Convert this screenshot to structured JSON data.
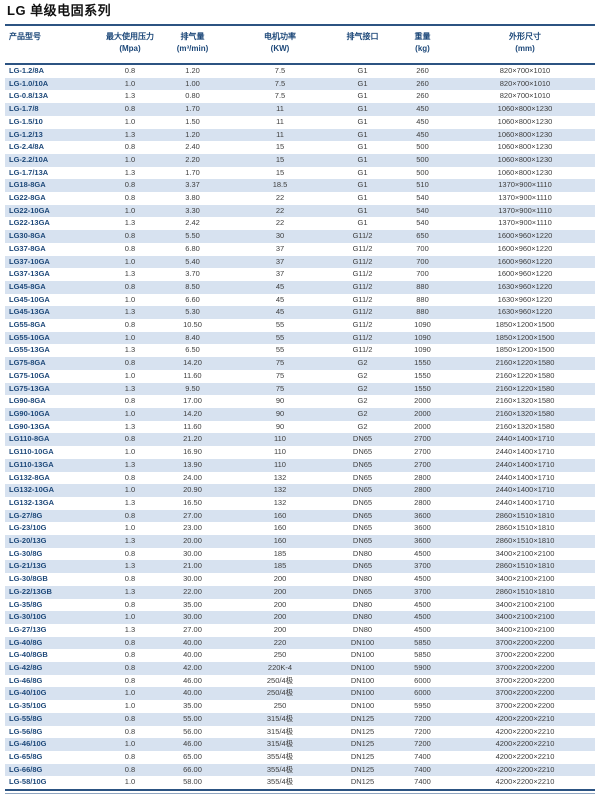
{
  "page_title": "LG 单级电固系列",
  "colors": {
    "accent_border": "#2c5382",
    "header_text": "#1d4879",
    "model_text": "#1d4879",
    "body_text": "#3d3d3d",
    "stripe": "#d7e2f0",
    "row_white": "#ffffff"
  },
  "table": {
    "columns": [
      {
        "key": "model",
        "label": "产品型号",
        "unit": ""
      },
      {
        "key": "max_pressure",
        "label": "最大使用压力",
        "unit": "(Mpa)"
      },
      {
        "key": "displacement",
        "label": "排气量",
        "unit": "(m³/min)"
      },
      {
        "key": "motor_power",
        "label": "电机功率",
        "unit": "(KW)"
      },
      {
        "key": "outlet",
        "label": "排气接口",
        "unit": ""
      },
      {
        "key": "weight",
        "label": "重量",
        "unit": "(kg)"
      },
      {
        "key": "dimensions",
        "label": "外形尺寸",
        "unit": "(mm)"
      }
    ],
    "rows": [
      [
        "LG-1.2/8A",
        "0.8",
        "1.20",
        "7.5",
        "G1",
        "260",
        "820×700×1010"
      ],
      [
        "LG-1.0/10A",
        "1.0",
        "1.00",
        "7.5",
        "G1",
        "260",
        "820×700×1010"
      ],
      [
        "LG-0.8/13A",
        "1.3",
        "0.80",
        "7.5",
        "G1",
        "260",
        "820×700×1010"
      ],
      [
        "LG-1.7/8",
        "0.8",
        "1.70",
        "11",
        "G1",
        "450",
        "1060×800×1230"
      ],
      [
        "LG-1.5/10",
        "1.0",
        "1.50",
        "11",
        "G1",
        "450",
        "1060×800×1230"
      ],
      [
        "LG-1.2/13",
        "1.3",
        "1.20",
        "11",
        "G1",
        "450",
        "1060×800×1230"
      ],
      [
        "LG-2.4/8A",
        "0.8",
        "2.40",
        "15",
        "G1",
        "500",
        "1060×800×1230"
      ],
      [
        "LG-2.2/10A",
        "1.0",
        "2.20",
        "15",
        "G1",
        "500",
        "1060×800×1230"
      ],
      [
        "LG-1.7/13A",
        "1.3",
        "1.70",
        "15",
        "G1",
        "500",
        "1060×800×1230"
      ],
      [
        "LG18-8GA",
        "0.8",
        "3.37",
        "18.5",
        "G1",
        "510",
        "1370×900×1110"
      ],
      [
        "LG22-8GA",
        "0.8",
        "3.80",
        "22",
        "G1",
        "540",
        "1370×900×1110"
      ],
      [
        "LG22-10GA",
        "1.0",
        "3.30",
        "22",
        "G1",
        "540",
        "1370×900×1110"
      ],
      [
        "LG22-13GA",
        "1.3",
        "2.42",
        "22",
        "G1",
        "540",
        "1370×900×1110"
      ],
      [
        "LG30-8GA",
        "0.8",
        "5.50",
        "30",
        "G11/2",
        "650",
        "1600×960×1220"
      ],
      [
        "LG37-8GA",
        "0.8",
        "6.80",
        "37",
        "G11/2",
        "700",
        "1600×960×1220"
      ],
      [
        "LG37-10GA",
        "1.0",
        "5.40",
        "37",
        "G11/2",
        "700",
        "1600×960×1220"
      ],
      [
        "LG37-13GA",
        "1.3",
        "3.70",
        "37",
        "G11/2",
        "700",
        "1600×960×1220"
      ],
      [
        "LG45-8GA",
        "0.8",
        "8.50",
        "45",
        "G11/2",
        "880",
        "1630×960×1220"
      ],
      [
        "LG45-10GA",
        "1.0",
        "6.60",
        "45",
        "G11/2",
        "880",
        "1630×960×1220"
      ],
      [
        "LG45-13GA",
        "1.3",
        "5.30",
        "45",
        "G11/2",
        "880",
        "1630×960×1220"
      ],
      [
        "LG55-8GA",
        "0.8",
        "10.50",
        "55",
        "G11/2",
        "1090",
        "1850×1200×1500"
      ],
      [
        "LG55-10GA",
        "1.0",
        "8.40",
        "55",
        "G11/2",
        "1090",
        "1850×1200×1500"
      ],
      [
        "LG55-13GA",
        "1.3",
        "6.50",
        "55",
        "G11/2",
        "1090",
        "1850×1200×1500"
      ],
      [
        "LG75-8GA",
        "0.8",
        "14.20",
        "75",
        "G2",
        "1550",
        "2160×1220×1580"
      ],
      [
        "LG75-10GA",
        "1.0",
        "11.60",
        "75",
        "G2",
        "1550",
        "2160×1220×1580"
      ],
      [
        "LG75-13GA",
        "1.3",
        "9.50",
        "75",
        "G2",
        "1550",
        "2160×1220×1580"
      ],
      [
        "LG90-8GA",
        "0.8",
        "17.00",
        "90",
        "G2",
        "2000",
        "2160×1320×1580"
      ],
      [
        "LG90-10GA",
        "1.0",
        "14.20",
        "90",
        "G2",
        "2000",
        "2160×1320×1580"
      ],
      [
        "LG90-13GA",
        "1.3",
        "11.60",
        "90",
        "G2",
        "2000",
        "2160×1320×1580"
      ],
      [
        "LG110-8GA",
        "0.8",
        "21.20",
        "110",
        "DN65",
        "2700",
        "2440×1400×1710"
      ],
      [
        "LG110-10GA",
        "1.0",
        "16.90",
        "110",
        "DN65",
        "2700",
        "2440×1400×1710"
      ],
      [
        "LG110-13GA",
        "1.3",
        "13.90",
        "110",
        "DN65",
        "2700",
        "2440×1400×1710"
      ],
      [
        "LG132-8GA",
        "0.8",
        "24.00",
        "132",
        "DN65",
        "2800",
        "2440×1400×1710"
      ],
      [
        "LG132-10GA",
        "1.0",
        "20.90",
        "132",
        "DN65",
        "2800",
        "2440×1400×1710"
      ],
      [
        "LG132-13GA",
        "1.3",
        "16.50",
        "132",
        "DN65",
        "2800",
        "2440×1400×1710"
      ],
      [
        "LG-27/8G",
        "0.8",
        "27.00",
        "160",
        "DN65",
        "3600",
        "2860×1510×1810"
      ],
      [
        "LG-23/10G",
        "1.0",
        "23.00",
        "160",
        "DN65",
        "3600",
        "2860×1510×1810"
      ],
      [
        "LG-20/13G",
        "1.3",
        "20.00",
        "160",
        "DN65",
        "3600",
        "2860×1510×1810"
      ],
      [
        "LG-30/8G",
        "0.8",
        "30.00",
        "185",
        "DN80",
        "4500",
        "3400×2100×2100"
      ],
      [
        "LG-21/13G",
        "1.3",
        "21.00",
        "185",
        "DN65",
        "3700",
        "2860×1510×1810"
      ],
      [
        "LG-30/8GB",
        "0.8",
        "30.00",
        "200",
        "DN80",
        "4500",
        "3400×2100×2100"
      ],
      [
        "LG-22/13GB",
        "1.3",
        "22.00",
        "200",
        "DN65",
        "3700",
        "2860×1510×1810"
      ],
      [
        "LG-35/8G",
        "0.8",
        "35.00",
        "200",
        "DN80",
        "4500",
        "3400×2100×2100"
      ],
      [
        "LG-30/10G",
        "1.0",
        "30.00",
        "200",
        "DN80",
        "4500",
        "3400×2100×2100"
      ],
      [
        "LG-27/13G",
        "1.3",
        "27.00",
        "200",
        "DN80",
        "4500",
        "3400×2100×2100"
      ],
      [
        "LG-40/8G",
        "0.8",
        "40.00",
        "220",
        "DN100",
        "5850",
        "3700×2200×2200"
      ],
      [
        "LG-40/8GB",
        "0.8",
        "40.00",
        "250",
        "DN100",
        "5850",
        "3700×2200×2200"
      ],
      [
        "LG-42/8G",
        "0.8",
        "42.00",
        "220K-4",
        "DN100",
        "5900",
        "3700×2200×2200"
      ],
      [
        "LG-46/8G",
        "0.8",
        "46.00",
        "250/4极",
        "DN100",
        "6000",
        "3700×2200×2200"
      ],
      [
        "LG-40/10G",
        "1.0",
        "40.00",
        "250/4极",
        "DN100",
        "6000",
        "3700×2200×2200"
      ],
      [
        "LG-35/10G",
        "1.0",
        "35.00",
        "250",
        "DN100",
        "5950",
        "3700×2200×2200"
      ],
      [
        "LG-55/8G",
        "0.8",
        "55.00",
        "315/4极",
        "DN125",
        "7200",
        "4200×2200×2210"
      ],
      [
        "LG-56/8G",
        "0.8",
        "56.00",
        "315/4极",
        "DN125",
        "7200",
        "4200×2200×2210"
      ],
      [
        "LG-46/10G",
        "1.0",
        "46.00",
        "315/4极",
        "DN125",
        "7200",
        "4200×2200×2210"
      ],
      [
        "LG-65/8G",
        "0.8",
        "65.00",
        "355/4极",
        "DN125",
        "7400",
        "4200×2200×2210"
      ],
      [
        "LG-66/8G",
        "0.8",
        "66.00",
        "355/4极",
        "DN125",
        "7400",
        "4200×2200×2210"
      ],
      [
        "LG-58/10G",
        "1.0",
        "58.00",
        "355/4极",
        "DN125",
        "7400",
        "4200×2200×2210"
      ]
    ]
  }
}
